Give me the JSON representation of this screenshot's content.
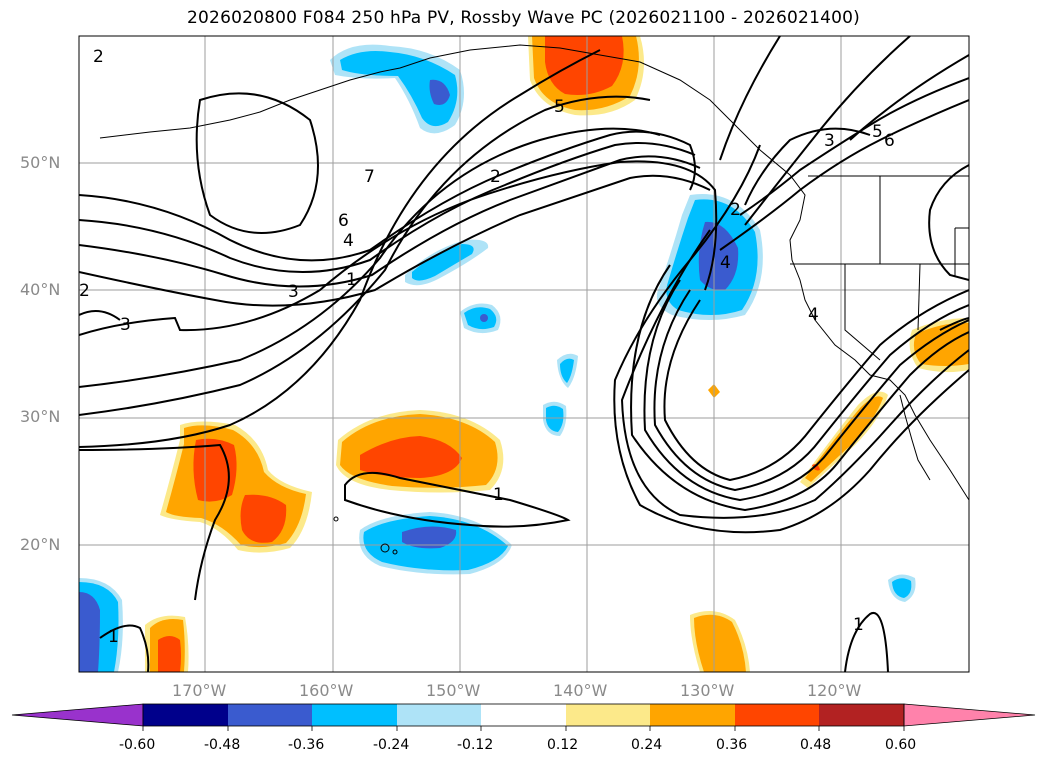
{
  "title": "2026020800 F084 250 hPa PV, Rossby Wave PC (2026021100 - 2026021400)",
  "lat_labels": [
    "50°N",
    "40°N",
    "30°N",
    "20°N"
  ],
  "lon_labels": [
    "170°W",
    "160°W",
    "150°W",
    "140°W",
    "130°W",
    "120°W"
  ],
  "contour_labels": [
    "7",
    "6",
    "4",
    "3",
    "1",
    "2",
    "1",
    "2",
    "4",
    "3",
    "5",
    "6",
    "4",
    "5",
    "1",
    "1",
    "3",
    "2",
    "2"
  ],
  "colorbar": {
    "ticks": [
      "-0.60",
      "-0.48",
      "-0.36",
      "-0.24",
      "-0.12",
      "0.12",
      "0.24",
      "0.36",
      "0.48",
      "0.60"
    ],
    "colors": [
      "#9932cc",
      "#00008b",
      "#3a5bcf",
      "#00bfff",
      "#aee3f7",
      "#ffffff",
      "#fce98a",
      "#ffa500",
      "#ff4500",
      "#b22222",
      "#ff82ab"
    ]
  },
  "map_colors": {
    "frame": "#000000",
    "grid": "#9e9e9e",
    "land_line": "#000000"
  }
}
